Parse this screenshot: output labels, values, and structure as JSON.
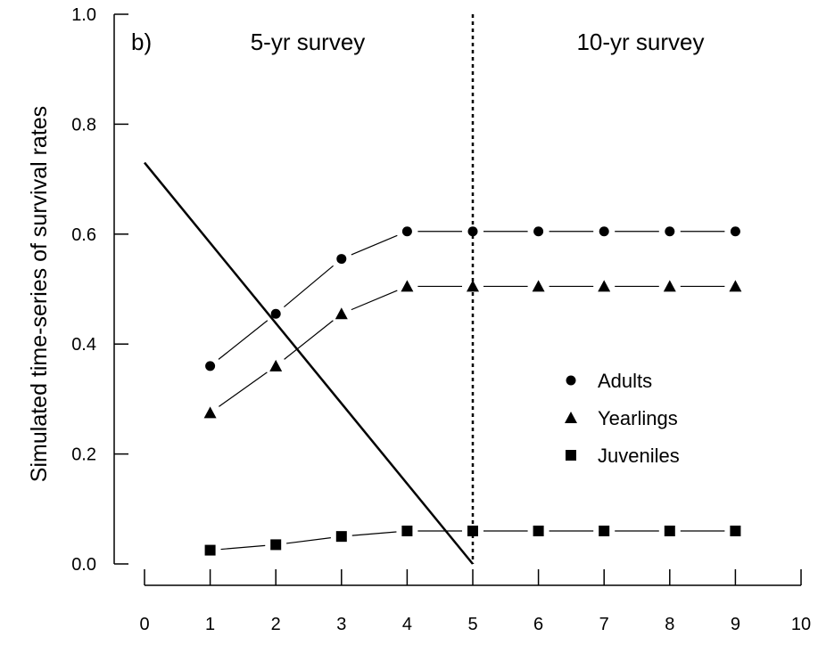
{
  "chart_data": {
    "type": "line",
    "panel_label": "b)",
    "title": "",
    "xlabel": "",
    "ylabel": "Simulated time-series of survival rates",
    "xlim": [
      0,
      10
    ],
    "ylim": [
      0.0,
      1.0
    ],
    "x_ticks": [
      "0",
      "1",
      "2",
      "3",
      "4",
      "5",
      "6",
      "7",
      "8",
      "9",
      "10"
    ],
    "y_ticks": [
      "0.0",
      "0.2",
      "0.4",
      "0.6",
      "0.8",
      "1.0"
    ],
    "grid": false,
    "legend_position": "center-right",
    "regions": [
      {
        "label": "5-yr survey"
      },
      {
        "label": "10-yr survey"
      }
    ],
    "divider_x": 5,
    "series": [
      {
        "name": "Adults",
        "marker": "circle",
        "x": [
          1,
          2,
          3,
          4,
          5,
          6,
          7,
          8,
          9
        ],
        "values": [
          0.36,
          0.455,
          0.555,
          0.605,
          0.605,
          0.605,
          0.605,
          0.605,
          0.605
        ]
      },
      {
        "name": "Yearlings",
        "marker": "triangle",
        "x": [
          1,
          2,
          3,
          4,
          5,
          6,
          7,
          8,
          9
        ],
        "values": [
          0.275,
          0.36,
          0.455,
          0.505,
          0.505,
          0.505,
          0.505,
          0.505,
          0.505
        ]
      },
      {
        "name": "Juveniles",
        "marker": "square",
        "x": [
          1,
          2,
          3,
          4,
          5,
          6,
          7,
          8,
          9
        ],
        "values": [
          0.025,
          0.035,
          0.05,
          0.06,
          0.06,
          0.06,
          0.06,
          0.06,
          0.06
        ]
      }
    ],
    "trend_line": {
      "x": [
        0,
        5
      ],
      "values": [
        0.73,
        0.0
      ]
    }
  }
}
